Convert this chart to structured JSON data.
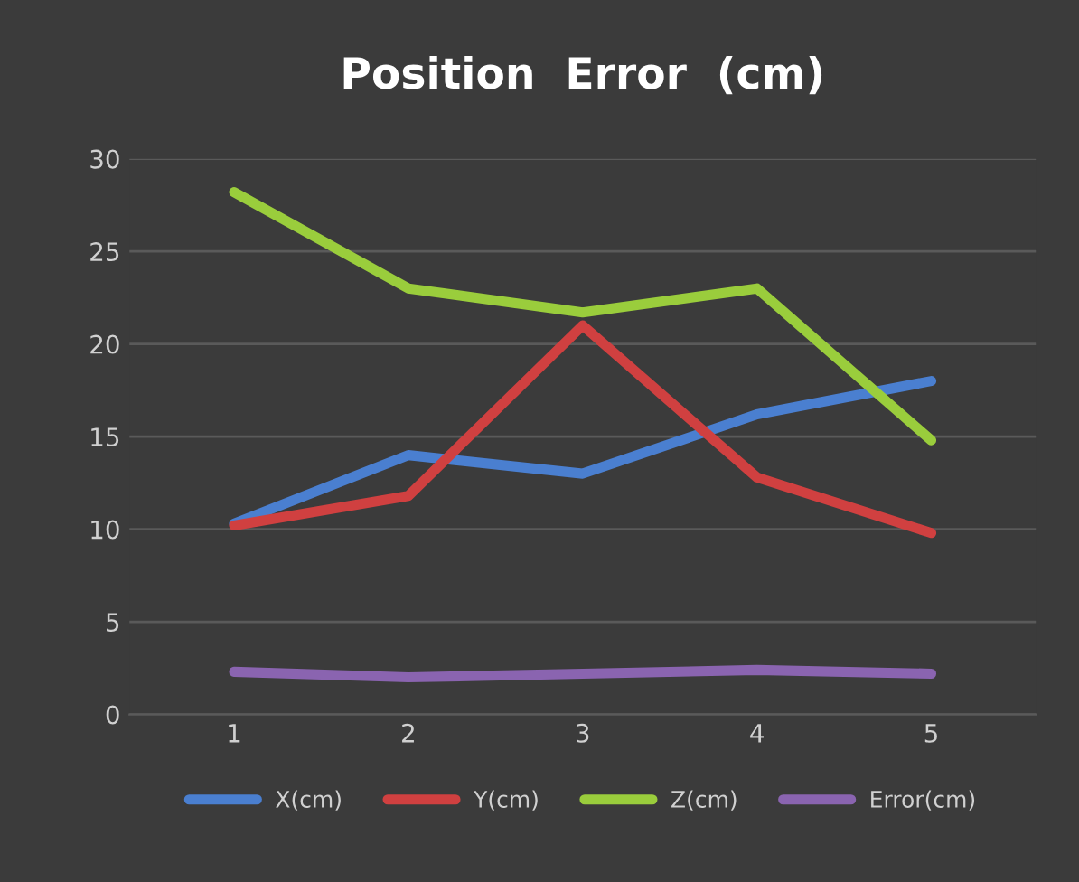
{
  "chart_data": {
    "type": "line",
    "title": "Position  Error  (cm)",
    "categories": [
      "1",
      "2",
      "3",
      "4",
      "5"
    ],
    "series": [
      {
        "name": "X(cm)",
        "color": "#4a7fd0",
        "values": [
          10.3,
          14,
          13,
          16.2,
          18
        ]
      },
      {
        "name": "Y(cm)",
        "color": "#d04040",
        "values": [
          10.2,
          11.8,
          21,
          12.8,
          9.8
        ]
      },
      {
        "name": "Z(cm)",
        "color": "#9acd3c",
        "values": [
          28.2,
          23,
          21.7,
          23,
          14.8
        ]
      },
      {
        "name": "Error(cm)",
        "color": "#8a64b0",
        "values": [
          2.3,
          2.0,
          2.2,
          2.4,
          2.2
        ]
      }
    ],
    "ylim": [
      0,
      30
    ],
    "yticks": [
      0,
      5,
      10,
      15,
      20,
      25,
      30
    ],
    "grid": "y",
    "legend": "bottom",
    "marker": "none",
    "line_style": "solid"
  }
}
